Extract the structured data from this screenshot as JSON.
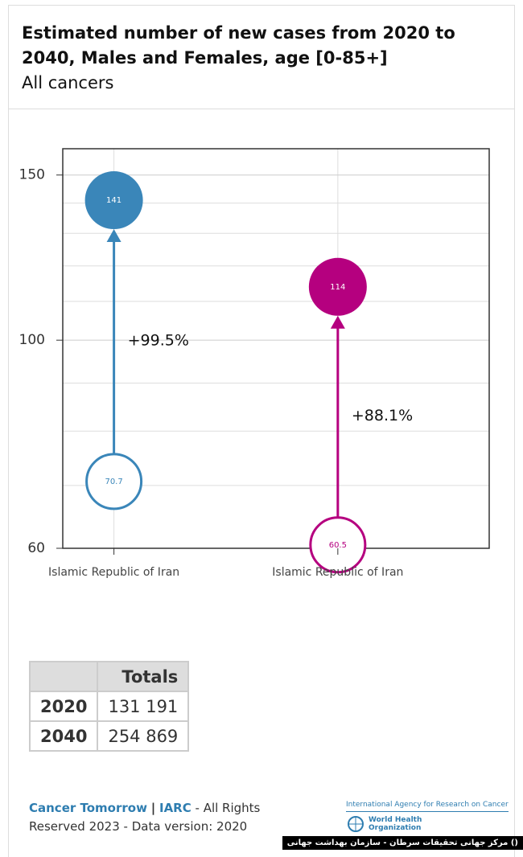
{
  "header": {
    "title_line1": "Estimated number of new cases from 2020 to",
    "title_line2": "2040, Males and Females, age [0-85+]",
    "subtitle": "All cancers"
  },
  "chart_data": {
    "type": "dumbbell",
    "log_y": true,
    "grid": true,
    "categories": [
      "Islamic Republic of Iran",
      "Islamic Republic of Iran"
    ],
    "ylim": [
      60,
      160
    ],
    "yticks": [
      60,
      100,
      150
    ],
    "yminorticks": [
      70,
      80,
      90,
      110,
      120,
      130,
      140
    ],
    "series": [
      {
        "color": "#3a86b9",
        "values": [
          70.7,
          141
        ],
        "change_label": "+99.5%"
      },
      {
        "color": "#b5007f",
        "values": [
          60.5,
          114
        ],
        "change_label": "+88.1%"
      }
    ]
  },
  "table": {
    "header": "Totals",
    "rows": [
      [
        "2020",
        "131 191"
      ],
      [
        "2040",
        "254 869"
      ]
    ]
  },
  "footer": {
    "brand": "Cancer Tomorrow",
    "sep": "|",
    "org": "IARC",
    "rights1": "- All Rights",
    "rights2": "Reserved 2023 - Data version: 2020"
  },
  "logo": {
    "agency": "International Agency for Research on Cancer",
    "who1": "World Health",
    "who2": "Organization"
  },
  "watermark": "() مرکز جهانی تحقیقات سرطان - سازمان بهداشت جهانی"
}
